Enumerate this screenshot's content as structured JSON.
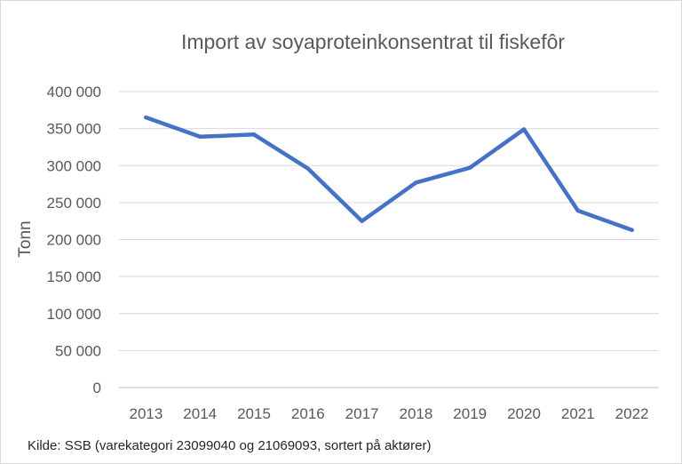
{
  "chart_data": {
    "type": "line",
    "title": "Import av soyaproteinkonsentrat til fiskefôr",
    "xlabel": "",
    "ylabel": "Tonn",
    "categories": [
      "2013",
      "2014",
      "2015",
      "2016",
      "2017",
      "2018",
      "2019",
      "2020",
      "2021",
      "2022"
    ],
    "series": [
      {
        "values": [
          365000,
          339000,
          342000,
          296000,
          225000,
          277000,
          297000,
          349000,
          239000,
          213000
        ],
        "color": "#4472c4"
      }
    ],
    "ylim": [
      0,
      400000
    ],
    "yticks": [
      0,
      50000,
      100000,
      150000,
      200000,
      250000,
      300000,
      350000,
      400000
    ],
    "ytick_labels": [
      "0",
      "50 000",
      "100 000",
      "150 000",
      "200 000",
      "250 000",
      "300 000",
      "350 000",
      "400 000"
    ],
    "grid": true,
    "legend": "none"
  },
  "source": "Kilde: SSB (varekategori 23099040 og 21069093, sortert på aktører)"
}
